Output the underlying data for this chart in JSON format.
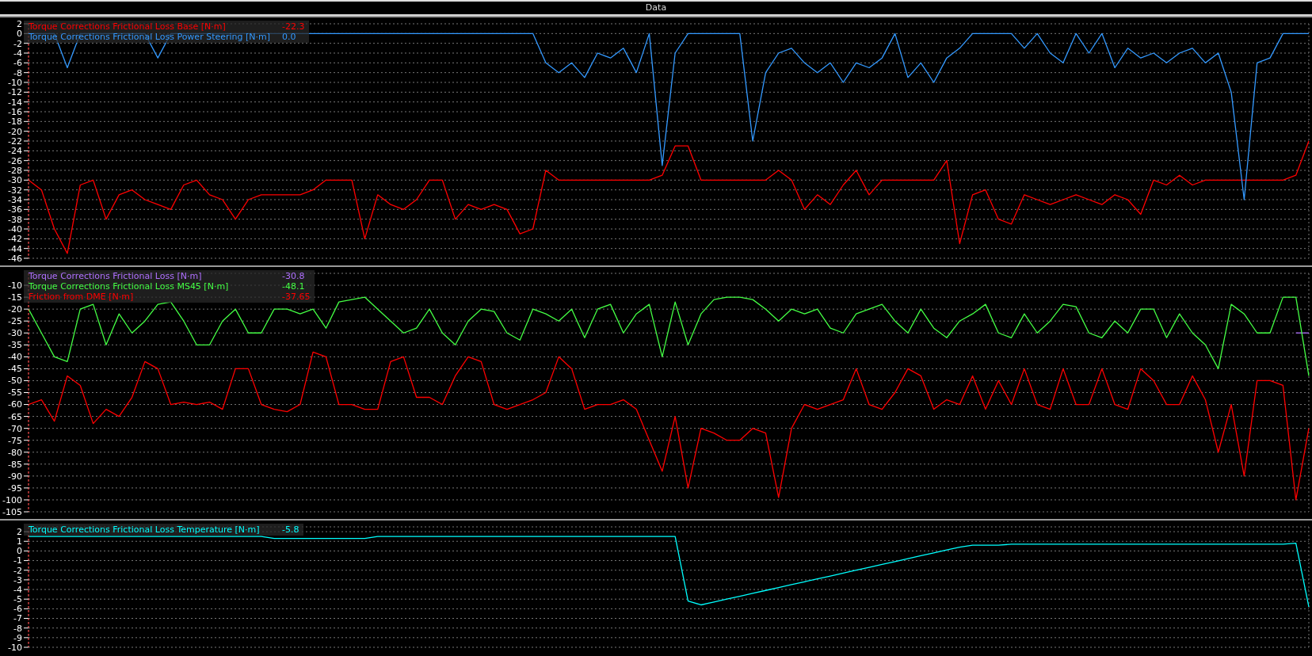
{
  "chart_data": [
    {
      "type": "line",
      "title": "Data",
      "categories": [
        null,
        null,
        null,
        null,
        null,
        null,
        null,
        null,
        null,
        null,
        null,
        null,
        null,
        null,
        null,
        null,
        null,
        null,
        null,
        null,
        null,
        null,
        null,
        null,
        null,
        null,
        null,
        null,
        null,
        null,
        null,
        null,
        null,
        null,
        null,
        null,
        null,
        null,
        null,
        null,
        null,
        null,
        null,
        null,
        null,
        null,
        null,
        null,
        null,
        null,
        null,
        null,
        null,
        null,
        null,
        null,
        null,
        null,
        null,
        null,
        null,
        null,
        null,
        null,
        null,
        null,
        null,
        null,
        null,
        null,
        null,
        null,
        null,
        null,
        null,
        null,
        null,
        null,
        null,
        null,
        null,
        null,
        null,
        null,
        null,
        null,
        null,
        null,
        null,
        null,
        null,
        null,
        null,
        null,
        null,
        null,
        null,
        null,
        null,
        null
      ],
      "series": [
        {
          "name": "Torque Corrections Frictional Loss Base [N·m]",
          "color": "#ff0000",
          "values": [
            -30,
            -32,
            -40,
            -45,
            -31,
            -30,
            -38,
            -33,
            -32,
            -34,
            -35,
            -36,
            -31,
            -30,
            -33,
            -34,
            -38,
            -34,
            -33,
            -33,
            -33,
            -33,
            -32,
            -30,
            -30,
            -30,
            -42,
            -33,
            -35,
            -36,
            -34,
            -30,
            -30,
            -38,
            -35,
            -36,
            -35,
            -36,
            -41,
            -40,
            -28,
            -30,
            -30,
            -30,
            -30,
            -30,
            -30,
            -30,
            -30,
            -29,
            -23,
            -23,
            -30,
            -30,
            -30,
            -30,
            -30,
            -30,
            -28,
            -30,
            -36,
            -33,
            -35,
            -31,
            -28,
            -33,
            -30,
            -30,
            -30,
            -30,
            -30,
            -26,
            -43,
            -33,
            -32,
            -38,
            -39,
            -33,
            -34,
            -35,
            -34,
            -33,
            -34,
            -35,
            -33,
            -34,
            -37,
            -30,
            -31,
            -29,
            -31,
            -30,
            -30,
            -30,
            -30,
            -30,
            -30,
            -30,
            -29,
            -22
          ]
        },
        {
          "name": "Torque Corrections Frictional Loss Power Steering [N·m]",
          "color": "#3399ff",
          "values": [
            0,
            0,
            0,
            -7,
            0,
            0,
            0,
            0,
            0,
            0,
            -5,
            0,
            0,
            0,
            0,
            0,
            0,
            0,
            0,
            0,
            0,
            0,
            0,
            0,
            0,
            0,
            0,
            0,
            0,
            0,
            0,
            0,
            0,
            0,
            0,
            0,
            0,
            0,
            0,
            0,
            -6,
            -8,
            -6,
            -9,
            -4,
            -5,
            -3,
            -8,
            0,
            -27,
            -4,
            0,
            0,
            0,
            0,
            0,
            -22,
            -8,
            -4,
            -3,
            -6,
            -8,
            -6,
            -10,
            -6,
            -7,
            -5,
            0,
            -9,
            -6,
            -10,
            -5,
            -3,
            0,
            0,
            0,
            0,
            -3,
            0,
            -4,
            -6,
            0,
            -4,
            0,
            -7,
            -3,
            -5,
            -4,
            -6,
            -4,
            -3,
            -6,
            -4,
            -12,
            -34,
            -6,
            -5,
            0,
            0,
            0
          ]
        }
      ],
      "ylim": [
        -46,
        2
      ],
      "yticks": [
        2,
        0,
        -2,
        -4,
        -6,
        -8,
        -10,
        -12,
        -14,
        -16,
        -18,
        -20,
        -22,
        -24,
        -26,
        -28,
        -30,
        -32,
        -34,
        -36,
        -38,
        -40,
        -42,
        -44,
        -46
      ],
      "grid": true,
      "legend": "top left",
      "tick_labels": "y",
      "annotations": [
        "-22.3",
        "0.0"
      ]
    },
    {
      "type": "line",
      "categories": [
        null,
        null,
        null,
        null,
        null,
        null,
        null,
        null,
        null,
        null,
        null,
        null,
        null,
        null,
        null,
        null,
        null,
        null,
        null,
        null,
        null,
        null,
        null,
        null,
        null,
        null,
        null,
        null,
        null,
        null,
        null,
        null,
        null,
        null,
        null,
        null,
        null,
        null,
        null,
        null,
        null,
        null,
        null,
        null,
        null,
        null,
        null,
        null,
        null,
        null,
        null,
        null,
        null,
        null,
        null,
        null,
        null,
        null,
        null,
        null,
        null,
        null,
        null,
        null,
        null,
        null,
        null,
        null,
        null,
        null,
        null,
        null,
        null,
        null,
        null,
        null,
        null,
        null,
        null,
        null,
        null,
        null,
        null,
        null,
        null,
        null,
        null,
        null,
        null,
        null,
        null,
        null,
        null,
        null,
        null,
        null,
        null,
        null,
        null,
        null
      ],
      "series": [
        {
          "name": "Torque Corrections Frictional Loss [N·m]",
          "color": "#b070ff",
          "values": [
            null,
            null,
            null,
            null,
            null,
            null,
            null,
            null,
            null,
            null,
            null,
            null,
            null,
            null,
            null,
            null,
            null,
            null,
            null,
            null,
            null,
            null,
            null,
            null,
            null,
            null,
            null,
            null,
            null,
            null,
            null,
            null,
            null,
            null,
            null,
            null,
            null,
            null,
            null,
            null,
            null,
            null,
            null,
            null,
            null,
            null,
            null,
            null,
            null,
            null,
            null,
            null,
            null,
            null,
            null,
            null,
            null,
            null,
            null,
            null,
            null,
            null,
            null,
            null,
            null,
            null,
            null,
            null,
            null,
            null,
            null,
            null,
            null,
            null,
            null,
            null,
            null,
            null,
            null,
            null,
            null,
            null,
            null,
            null,
            null,
            null,
            null,
            null,
            null,
            null,
            null,
            null,
            null,
            null,
            null,
            null,
            null,
            null,
            -30,
            -30
          ]
        },
        {
          "name": "Torque Corrections Frictional Loss MS45 [N·m]",
          "color": "#44ff44",
          "values": [
            -20,
            -30,
            -40,
            -42,
            -20,
            -18,
            -35,
            -22,
            -30,
            -25,
            -18,
            -17,
            -25,
            -35,
            -35,
            -25,
            -20,
            -30,
            -30,
            -20,
            -20,
            -22,
            -20,
            -28,
            -17,
            -16,
            -15,
            -20,
            -25,
            -30,
            -28,
            -20,
            -30,
            -35,
            -25,
            -20,
            -21,
            -30,
            -33,
            -20,
            -22,
            -25,
            -20,
            -32,
            -20,
            -18,
            -30,
            -22,
            -18,
            -40,
            -17,
            -35,
            -22,
            -16,
            -15,
            -15,
            -16,
            -20,
            -25,
            -20,
            -22,
            -20,
            -28,
            -30,
            -22,
            -20,
            -18,
            -25,
            -30,
            -20,
            -28,
            -32,
            -25,
            -22,
            -18,
            -30,
            -32,
            -22,
            -30,
            -25,
            -18,
            -19,
            -30,
            -32,
            -25,
            -30,
            -20,
            -20,
            -32,
            -22,
            -30,
            -35,
            -45,
            -18,
            -22,
            -30,
            -30,
            -15,
            -15,
            -48
          ]
        },
        {
          "name": "Friction from DME [N·m]",
          "color": "#ff0000",
          "values": [
            -60,
            -58,
            -67,
            -48,
            -52,
            -68,
            -62,
            -65,
            -57,
            -42,
            -45,
            -60,
            -59,
            -60,
            -59,
            -62,
            -45,
            -45,
            -60,
            -62,
            -63,
            -60,
            -38,
            -40,
            -60,
            -60,
            -62,
            -62,
            -42,
            -40,
            -57,
            -57,
            -60,
            -48,
            -40,
            -42,
            -60,
            -62,
            -60,
            -58,
            -55,
            -40,
            -45,
            -62,
            -60,
            -60,
            -58,
            -62,
            -75,
            -88,
            -65,
            -95,
            -70,
            -72,
            -75,
            -75,
            -70,
            -72,
            -99,
            -70,
            -60,
            -62,
            -60,
            -58,
            -45,
            -60,
            -62,
            -55,
            -45,
            -48,
            -62,
            -58,
            -60,
            -48,
            -62,
            -50,
            -60,
            -45,
            -60,
            -62,
            -45,
            -60,
            -60,
            -45,
            -60,
            -62,
            -45,
            -50,
            -60,
            -60,
            -48,
            -58,
            -80,
            -60,
            -90,
            -50,
            -50,
            -52,
            -100,
            -70
          ]
        }
      ],
      "ylim": [
        -105,
        -5
      ],
      "yticks": [
        -10,
        -15,
        -20,
        -25,
        -30,
        -35,
        -40,
        -45,
        -50,
        -55,
        -60,
        -65,
        -70,
        -75,
        -80,
        -85,
        -90,
        -95,
        -100,
        -105
      ],
      "grid": true,
      "legend": "top left",
      "tick_labels": "y",
      "annotations": [
        "-30.8",
        "-48.1",
        "-37.65"
      ]
    },
    {
      "type": "line",
      "categories": [
        null,
        null,
        null,
        null,
        null,
        null,
        null,
        null,
        null,
        null,
        null,
        null,
        null,
        null,
        null,
        null,
        null,
        null,
        null,
        null,
        null,
        null,
        null,
        null,
        null,
        null,
        null,
        null,
        null,
        null,
        null,
        null,
        null,
        null,
        null,
        null,
        null,
        null,
        null,
        null,
        null,
        null,
        null,
        null,
        null,
        null,
        null,
        null,
        null,
        null,
        null,
        null,
        null,
        null,
        null,
        null,
        null,
        null,
        null,
        null,
        null,
        null,
        null,
        null,
        null,
        null,
        null,
        null,
        null,
        null,
        null,
        null,
        null,
        null,
        null,
        null,
        null,
        null,
        null,
        null,
        null,
        null,
        null,
        null,
        null,
        null,
        null,
        null,
        null,
        null,
        null,
        null,
        null,
        null,
        null,
        null,
        null,
        null,
        null,
        null
      ],
      "series": [
        {
          "name": "Torque Corrections Frictional Loss Temperature [N·m]",
          "color": "#00ffff",
          "values": [
            1.5,
            1.5,
            1.5,
            1.5,
            1.5,
            1.5,
            1.5,
            1.5,
            1.5,
            1.5,
            1.5,
            1.5,
            1.5,
            1.5,
            1.5,
            1.5,
            1.5,
            1.5,
            1.5,
            1.3,
            1.3,
            1.3,
            1.3,
            1.3,
            1.3,
            1.3,
            1.3,
            1.5,
            1.5,
            1.5,
            1.5,
            1.5,
            1.5,
            1.5,
            1.5,
            1.5,
            1.5,
            1.5,
            1.5,
            1.5,
            1.5,
            1.5,
            1.5,
            1.5,
            1.5,
            1.5,
            1.5,
            1.5,
            1.5,
            1.5,
            1.5,
            -5.2,
            -5.6,
            -5.3,
            -5,
            -4.7,
            -4.4,
            -4.1,
            -3.8,
            -3.5,
            -3.2,
            -2.9,
            -2.6,
            -2.3,
            -2,
            -1.7,
            -1.4,
            -1.1,
            -0.8,
            -0.5,
            -0.2,
            0.1,
            0.4,
            0.6,
            0.6,
            0.6,
            0.7,
            0.7,
            0.7,
            0.7,
            0.7,
            0.7,
            0.7,
            0.7,
            0.7,
            0.7,
            0.7,
            0.7,
            0.7,
            0.7,
            0.7,
            0.7,
            0.7,
            0.7,
            0.7,
            0.7,
            0.7,
            0.7,
            0.8,
            -5.8
          ]
        }
      ],
      "ylim": [
        -10,
        2.5
      ],
      "yticks": [
        2,
        1,
        0,
        -1,
        -2,
        -3,
        -4,
        -5,
        -6,
        -7,
        -8,
        -9,
        -10
      ],
      "grid": true,
      "legend": "top left",
      "tick_labels": "y",
      "annotations": [
        "-5.8"
      ]
    }
  ]
}
